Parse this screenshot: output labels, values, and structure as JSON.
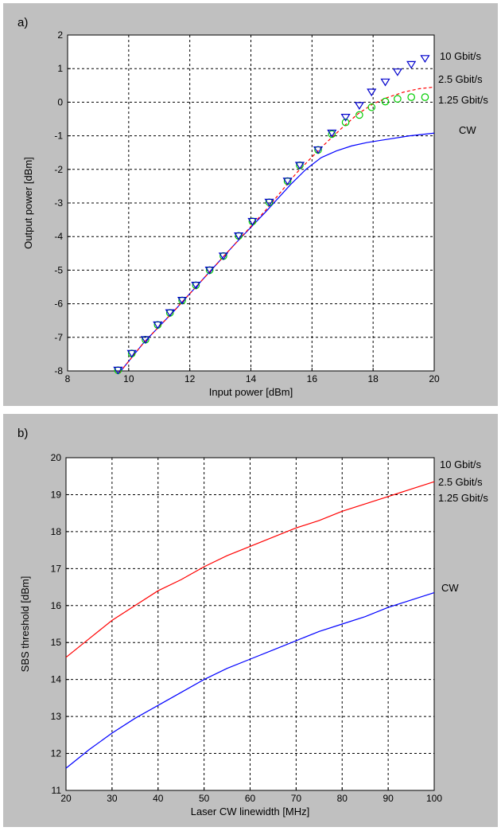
{
  "chart_data": [
    {
      "panel_label": "a)",
      "type": "line",
      "xlabel": "Input power [dBm]",
      "ylabel": "Output power [dBm]",
      "xlim": [
        8,
        20
      ],
      "ylim": [
        -8,
        2
      ],
      "xticks": [
        8,
        10,
        12,
        14,
        16,
        18,
        20
      ],
      "yticks": [
        -8,
        -7,
        -6,
        -5,
        -4,
        -3,
        -2,
        -1,
        0,
        1,
        2
      ],
      "grid": true,
      "legend_labels": [
        "10 Gbit/s",
        "2.5 Gbit/s",
        "1.25 Gbit/s",
        "CW"
      ],
      "series": [
        {
          "name": "CW",
          "style": "solid",
          "color": "#0000ff",
          "x": [
            9.7,
            10.5,
            11.5,
            12.5,
            13.5,
            14.5,
            15.3,
            15.8,
            16.3,
            16.8,
            17.3,
            17.8,
            18.5,
            19.2,
            20
          ],
          "y": [
            -8.05,
            -7.15,
            -6.2,
            -5.2,
            -4.2,
            -3.25,
            -2.45,
            -2.0,
            -1.65,
            -1.45,
            -1.3,
            -1.2,
            -1.1,
            -1.0,
            -0.92
          ]
        },
        {
          "name": "2.5 Gbit/s",
          "style": "dashed",
          "color": "#ff0000",
          "x": [
            9.7,
            10.5,
            11.5,
            12.5,
            13.5,
            14.5,
            15.5,
            16.3,
            17.0,
            17.5,
            18.0,
            18.5,
            19.0,
            19.5,
            20
          ],
          "y": [
            -8.05,
            -7.15,
            -6.2,
            -5.2,
            -4.2,
            -3.2,
            -2.1,
            -1.35,
            -0.75,
            -0.35,
            -0.05,
            0.15,
            0.3,
            0.4,
            0.45
          ]
        },
        {
          "name": "1.25 Gbit/s",
          "marker": "circle",
          "color": "#00cc00",
          "x": [
            9.65,
            10.1,
            10.55,
            10.95,
            11.35,
            11.75,
            12.2,
            12.65,
            13.1,
            13.6,
            14.05,
            14.6,
            15.2,
            15.6,
            16.2,
            16.65,
            17.1,
            17.55,
            17.95,
            18.4,
            18.8,
            19.25,
            19.7
          ],
          "y": [
            -7.98,
            -7.48,
            -7.07,
            -6.63,
            -6.27,
            -5.9,
            -5.45,
            -5.0,
            -4.58,
            -3.98,
            -3.55,
            -2.98,
            -2.35,
            -1.88,
            -1.42,
            -0.95,
            -0.6,
            -0.38,
            -0.15,
            0.02,
            0.1,
            0.15,
            0.15
          ]
        },
        {
          "name": "10 Gbit/s",
          "marker": "triangle-down",
          "color": "#0000cc",
          "x": [
            9.65,
            10.1,
            10.55,
            10.95,
            11.35,
            11.75,
            12.2,
            12.65,
            13.1,
            13.6,
            14.05,
            14.6,
            15.2,
            15.6,
            16.2,
            16.65,
            17.1,
            17.55,
            17.95,
            18.4,
            18.8,
            19.25,
            19.7
          ],
          "y": [
            -7.98,
            -7.48,
            -7.07,
            -6.63,
            -6.27,
            -5.9,
            -5.45,
            -5.0,
            -4.58,
            -3.98,
            -3.55,
            -2.98,
            -2.35,
            -1.88,
            -1.42,
            -0.92,
            -0.45,
            -0.1,
            0.3,
            0.6,
            0.9,
            1.12,
            1.3
          ]
        }
      ]
    },
    {
      "panel_label": "b)",
      "type": "line",
      "xlabel": "Laser CW linewidth [MHz]",
      "ylabel": "SBS threshold [dBm]",
      "xlim": [
        20,
        100
      ],
      "ylim": [
        11,
        20
      ],
      "xticks": [
        20,
        30,
        40,
        50,
        60,
        70,
        80,
        90,
        100
      ],
      "yticks": [
        11,
        12,
        13,
        14,
        15,
        16,
        17,
        18,
        19,
        20
      ],
      "grid": true,
      "legend_labels": [
        "10 Gbit/s",
        "2.5 Gbit/s",
        "1.25 Gbit/s",
        "CW"
      ],
      "series": [
        {
          "name": "10 Gbit/s / 2.5 Gbit/s / 1.25 Gbit/s",
          "style": "solid",
          "color": "#ff0000",
          "x": [
            20,
            25,
            30,
            35,
            40,
            45,
            50,
            55,
            60,
            65,
            70,
            75,
            80,
            85,
            90,
            95,
            100
          ],
          "y": [
            14.6,
            15.1,
            15.6,
            16.0,
            16.4,
            16.7,
            17.05,
            17.35,
            17.6,
            17.85,
            18.1,
            18.3,
            18.55,
            18.75,
            18.95,
            19.15,
            19.35
          ]
        },
        {
          "name": "CW",
          "style": "solid",
          "color": "#0000ff",
          "x": [
            20,
            25,
            30,
            35,
            40,
            45,
            50,
            55,
            60,
            65,
            70,
            75,
            80,
            85,
            90,
            95,
            100
          ],
          "y": [
            11.6,
            12.1,
            12.55,
            12.95,
            13.3,
            13.65,
            14.0,
            14.3,
            14.55,
            14.8,
            15.05,
            15.3,
            15.5,
            15.7,
            15.95,
            16.15,
            16.35
          ]
        }
      ]
    }
  ]
}
